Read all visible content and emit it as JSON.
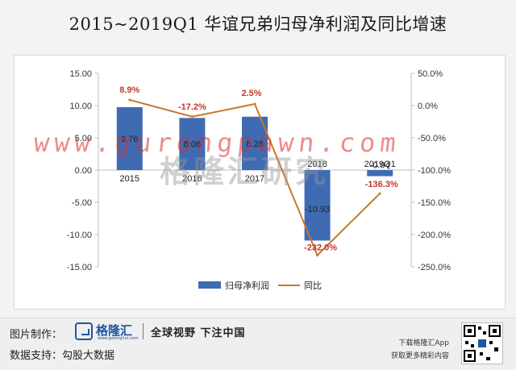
{
  "title": "2015~2019Q1  华谊兄弟归母净利润及同比增速",
  "watermark_url": "www.gurongpawn.com",
  "watermark_cn": "格隆汇研究",
  "colors": {
    "bar": "#3f6bb2",
    "line": "#c8782a",
    "label_red": "#c0392b",
    "axis_text": "#333333"
  },
  "chart_data": {
    "type": "bar+line",
    "categories": [
      "2015",
      "2016",
      "2017",
      "2018",
      "2019Q1"
    ],
    "series": [
      {
        "name": "归母净利润",
        "type": "bar",
        "axis": "left",
        "values": [
          9.76,
          8.08,
          8.28,
          -10.93,
          -0.94
        ],
        "labels": [
          "9.76",
          "8.08",
          "8.28",
          "-10.93",
          "-0.94"
        ]
      },
      {
        "name": "同比",
        "type": "line",
        "axis": "right",
        "values": [
          8.9,
          -17.2,
          2.5,
          -232.0,
          -136.3
        ],
        "labels": [
          "8.9%",
          "-17.2%",
          "2.5%",
          "-232.0%",
          "-136.3%"
        ]
      }
    ],
    "ylim_left": [
      -15,
      15
    ],
    "yticks_left": [
      "15.00",
      "10.00",
      "5.00",
      "0.00",
      "-5.00",
      "-10.00",
      "-15.00"
    ],
    "ylim_right": [
      -250,
      50
    ],
    "yticks_right": [
      "50.0%",
      "0.0%",
      "-50.0%",
      "-100.0%",
      "-150.0%",
      "-200.0%",
      "-250.0%"
    ],
    "legend_position": "bottom",
    "grid": false
  },
  "footer": {
    "made_by_label": "图片制作：",
    "logo_name": "格隆汇",
    "logo_domain": "www.gelonghui.com",
    "slogan": "全球视野 下注中国",
    "data_support": "数据支持：勾股大数据",
    "download": "下载格隆汇App",
    "more": "获取更多精彩内容"
  }
}
